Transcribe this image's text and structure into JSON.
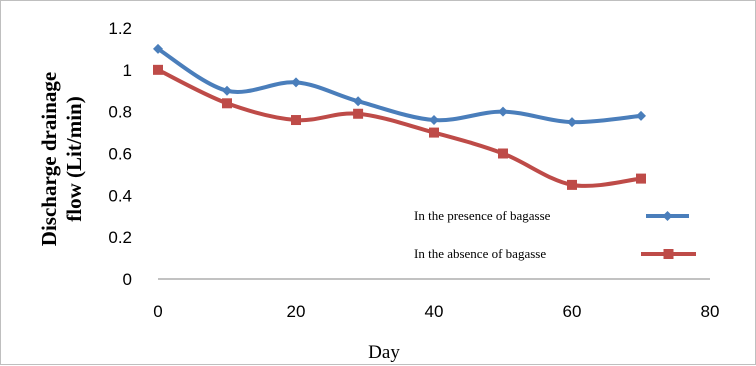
{
  "chart_data": {
    "type": "line",
    "title": "",
    "xlabel": "Day",
    "ylabel_line1": "Discharge drainage",
    "ylabel_line2": "flow (Lit/min)",
    "xlim": [
      0,
      80
    ],
    "ylim": [
      0,
      1.2
    ],
    "x_ticks": [
      "0",
      "20",
      "40",
      "60",
      "80"
    ],
    "y_ticks": [
      "0",
      "0.2",
      "0.4",
      "0.6",
      "0.8",
      "1",
      "1.2"
    ],
    "grid": false,
    "legend_position": "bottom-right",
    "series": [
      {
        "name": "In the presence of bagasse",
        "color": "#4a7ebb",
        "marker": "diamond",
        "x": [
          0,
          10,
          20,
          29,
          40,
          50,
          60,
          70
        ],
        "y": [
          1.1,
          0.9,
          0.94,
          0.85,
          0.76,
          0.8,
          0.75,
          0.78
        ]
      },
      {
        "name": "In the absence of bagasse",
        "color": "#be4b48",
        "marker": "square",
        "x": [
          0,
          10,
          20,
          29,
          40,
          50,
          60,
          70
        ],
        "y": [
          1.0,
          0.84,
          0.76,
          0.79,
          0.7,
          0.6,
          0.45,
          0.48
        ]
      }
    ]
  }
}
